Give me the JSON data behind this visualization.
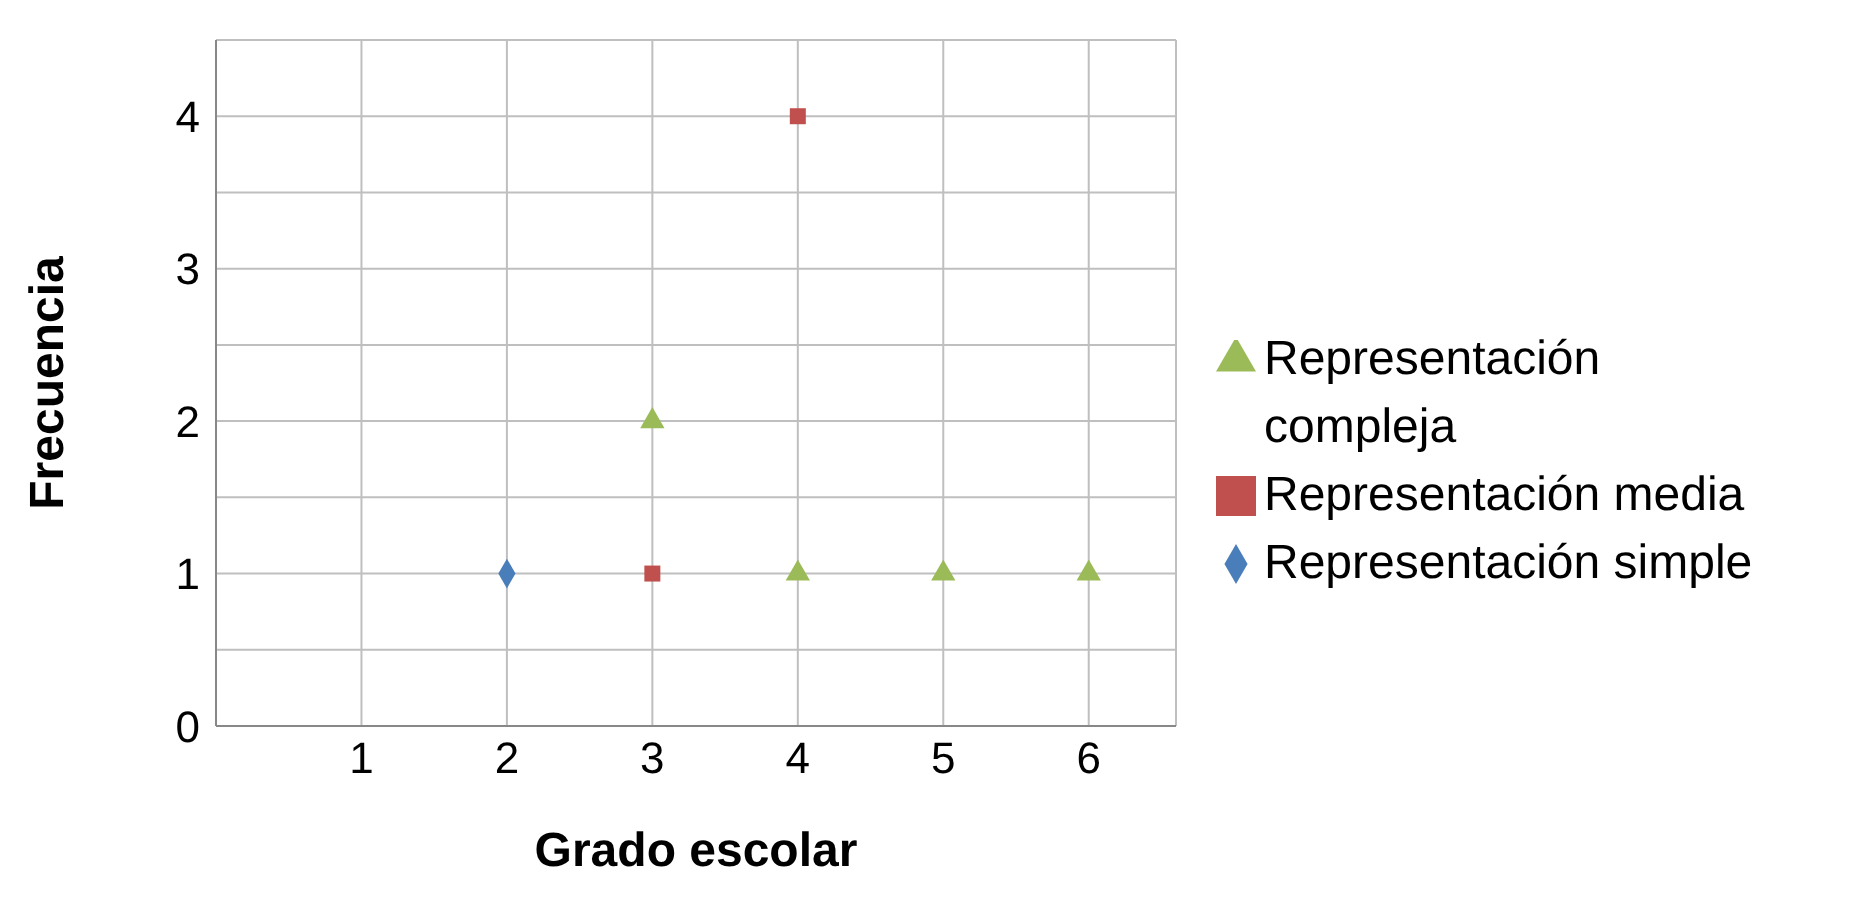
{
  "chart_data": {
    "type": "scatter",
    "xlabel": "Grado escolar",
    "ylabel": "Frecuencia",
    "xlim": [
      0,
      6.6
    ],
    "xticks": [
      1,
      2,
      3,
      4,
      5,
      6
    ],
    "ylim": [
      0,
      4.5
    ],
    "yticks": [
      0,
      {
        "value": 0.5,
        "label": null
      },
      1,
      {
        "value": 1.5,
        "label": null
      },
      2,
      {
        "value": 2.5,
        "label": null
      },
      3,
      {
        "value": 3.5,
        "label": null
      },
      4
    ],
    "grid": true,
    "legend": "right",
    "series": [
      {
        "name": "Representación simple",
        "color": "#4a7ebb",
        "marker": "diamond",
        "x": [
          2
        ],
        "values": [
          1
        ]
      },
      {
        "name": "Representación media",
        "color": "#c0504d",
        "marker": "square",
        "x": [
          3,
          4
        ],
        "values": [
          1,
          4
        ]
      },
      {
        "name": "Representación compleja",
        "color": "#9bbb59",
        "marker": "triangle",
        "x": [
          3,
          4,
          5,
          6
        ],
        "values": [
          2,
          1,
          1,
          1
        ]
      }
    ]
  }
}
